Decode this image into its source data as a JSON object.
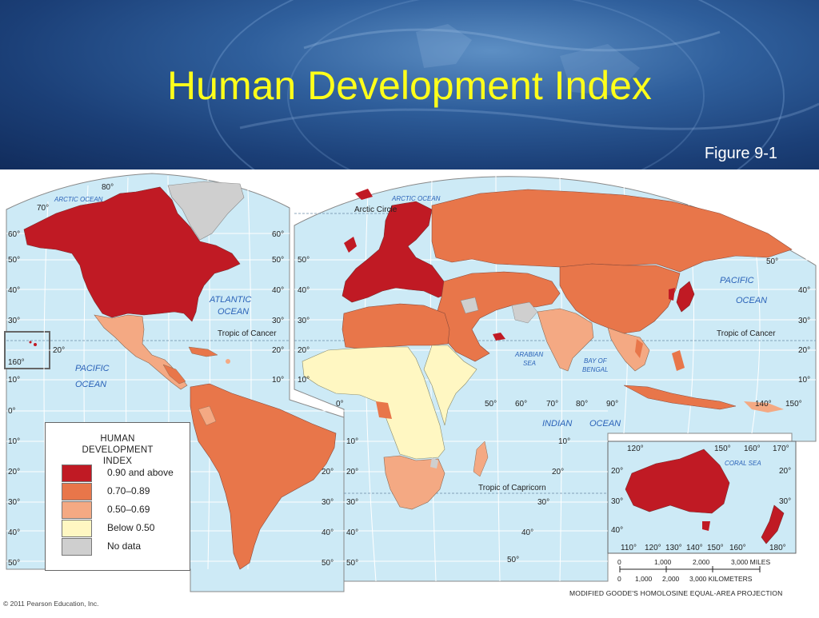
{
  "slide": {
    "title": "Human Development Index",
    "figure": "Figure 9-1",
    "copyright": "© 2011 Pearson Education, Inc."
  },
  "legend": {
    "title": "HUMAN DEVELOPMENT INDEX",
    "items": [
      {
        "label": "0.90 and above",
        "color": "#c01a24"
      },
      {
        "label": "0.70–0.89",
        "color": "#e8764a"
      },
      {
        "label": "0.50–0.69",
        "color": "#f4a983"
      },
      {
        "label": "Below 0.50",
        "color": "#fff7c2"
      },
      {
        "label": "No data",
        "color": "#cfcfcf"
      }
    ]
  },
  "map": {
    "colors": {
      "ocean": "#cdeaf6",
      "grid": "#ffffff",
      "high": "#c01a24",
      "mid": "#e8764a",
      "low": "#f4a983",
      "verylow": "#fff7c2",
      "nodata": "#cfcfcf"
    },
    "oceans": {
      "arctic_left": "ARCTIC OCEAN",
      "arctic_right": "ARCTIC OCEAN",
      "atlantic": "ATLANTIC\nOCEAN",
      "atlantic_1": "ATLANTIC",
      "atlantic_2": "OCEAN",
      "pacific_left_1": "PACIFIC",
      "pacific_left_2": "OCEAN",
      "pacific_right_1": "PACIFIC",
      "pacific_right_2": "OCEAN",
      "indian_1": "INDIAN",
      "indian_2": "OCEAN",
      "arabian_1": "ARABIAN",
      "arabian_2": "SEA",
      "bengal_1": "BAY OF",
      "bengal_2": "BENGAL",
      "coral": "CORAL SEA"
    },
    "lines": {
      "arctic_circle": "Arctic Circle",
      "cancer_left": "Tropic of Cancer",
      "cancer_right": "Tropic of Cancer",
      "capricorn": "Tropic of Capricorn"
    },
    "lat_labels_left": [
      "60°",
      "50°",
      "40°",
      "30°",
      "20°",
      "10°",
      "0°",
      "10°",
      "20°",
      "30°",
      "40°",
      "50°"
    ],
    "lat_labels_mid": [
      "60°",
      "50°",
      "40°",
      "30°",
      "20°",
      "10°"
    ],
    "lat_labels_left2": [
      "50°",
      "40°",
      "30°",
      "20°",
      "10°"
    ],
    "lat_labels_africa": [
      "10°",
      "20°",
      "30°",
      "40°",
      "50°"
    ],
    "lat_labels_right": [
      "40°",
      "30°",
      "20°",
      "10°"
    ],
    "lat_labels_sam_right": [
      "20°",
      "30°",
      "40°",
      "50°"
    ],
    "top_labels": [
      "80°",
      "70°"
    ],
    "hawaii_labels": [
      "20°",
      "160°"
    ],
    "lon_labels_asia": [
      "0°",
      "50°",
      "60°",
      "70°",
      "80°",
      "90°",
      "140°",
      "150°"
    ],
    "indian_lat": [
      "10°",
      "20°",
      "30°",
      "40°",
      "50°"
    ],
    "australia_lon_top": [
      "120°",
      "150°",
      "160°",
      "170°"
    ],
    "australia_lon_bottom": [
      "110°",
      "120°",
      "130°",
      "140°",
      "150°",
      "160°",
      "180°"
    ],
    "australia_lat_left": [
      "20°",
      "30°",
      "40°"
    ],
    "australia_lat_right": [
      "20°",
      "30°"
    ],
    "right_50": "50°"
  },
  "scale": {
    "miles": [
      "0",
      "1,000",
      "2,000",
      "3,000 MILES"
    ],
    "km": [
      "0",
      "1,000",
      "2,000",
      "3,000 KILOMETERS"
    ],
    "projection": "MODIFIED GOODE'S HOMOLOSINE EQUAL-AREA PROJECTION"
  }
}
